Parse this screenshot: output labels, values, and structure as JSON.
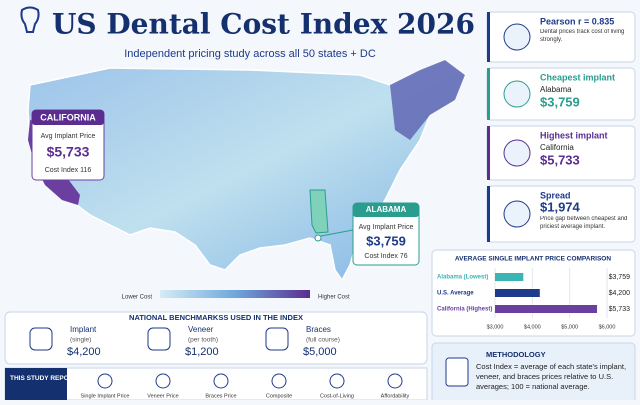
{
  "header": {
    "title": "US Dental Cost Index 2026",
    "subtitle": "Independent pricing study across all 50 states + DC"
  },
  "map": {
    "callouts": [
      {
        "state": "CALIFORNIA",
        "label": "Avg Implant Price",
        "price": "$5,733",
        "index": "Cost Index 116"
      },
      {
        "state": "ALABAMA",
        "label": "Avg Implant Price",
        "price": "$3,759",
        "index": "Cost Index 76"
      }
    ],
    "legend": {
      "low": "Lower Cost",
      "high": "Higher Cost"
    }
  },
  "cards": [
    {
      "title": "Pearson r = 0.835",
      "text": "Dental prices track cost of living strongly."
    },
    {
      "title": "Cheapest implant",
      "state": "Alabama",
      "price": "$3,759"
    },
    {
      "title": "Highest implant",
      "state": "California",
      "price": "$5,733"
    },
    {
      "title": "Spread",
      "price": "$1,974",
      "text": "Price gap between cheapest and priciest average implant."
    }
  ],
  "comparison": {
    "title": "AVERAGE SINGLE IMPLANT PRICE COMPARISON",
    "categories": [
      "Alabama (Lowest)",
      "U.S. Average",
      "California (Highest)"
    ],
    "values": [
      3759,
      4200,
      5733
    ],
    "value_labels": [
      "$3,759",
      "$4,200",
      "$5,733"
    ],
    "colors": [
      "#3cb4b4",
      "#1e3a8a",
      "#6b3fa0"
    ],
    "xlim": [
      3000,
      6000
    ],
    "xticks": [
      {
        "value": 3000,
        "label": "$3,000"
      },
      {
        "value": 4000,
        "label": "$4,000"
      },
      {
        "value": 5000,
        "label": "$5,000"
      },
      {
        "value": 6000,
        "label": "$6,000"
      }
    ]
  },
  "benchmarks": {
    "title": "NATIONAL BENCHMARKSS USED IN THE INDEX",
    "items": [
      {
        "name": "Implant",
        "unit": "(single)",
        "price": "$4,200"
      },
      {
        "name": "Veneer",
        "unit": "(per tooth)",
        "price": "$1,200"
      },
      {
        "name": "Braces",
        "unit": "(full course)",
        "price": "$5,000"
      }
    ]
  },
  "report": {
    "title": "THIS STUDY REPORTS FOR EACH JURISDICTION",
    "items": [
      "Single Implant Price",
      "Veneer Price",
      "Braces Price",
      "Composite",
      "Cost-of-Living",
      "Affordability"
    ]
  },
  "methodology": {
    "title": "METHODOLOGY",
    "text": "Cost Index = average of each state's implant, veneer, and braces prices relative to U.S. averages; 100 = national average."
  }
}
